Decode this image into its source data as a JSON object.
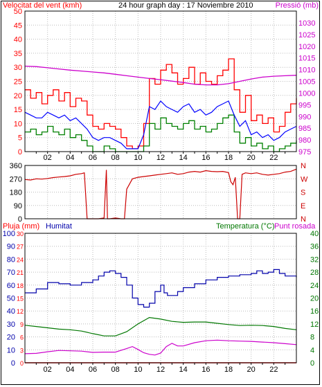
{
  "colors": {
    "wind": "#ff0000",
    "wind_avg": "#0000ff",
    "wind_min": "#008000",
    "pressure": "#cc00cc",
    "direction": "#cc0000",
    "rain": "#ff0000",
    "humidity": "#0000aa",
    "temperature": "#007700",
    "dewpoint": "#cc00cc",
    "grid": "#bbbbbb",
    "frame": "#000000"
  },
  "chart_data": [
    {
      "type": "line",
      "title": "24 hour graph day : 17 Noviembre 2010",
      "left_axis_label": "Velocitat del vent (kmh)",
      "right_axis_label": "Pressió (mb)",
      "ylim_left": [
        0,
        50
      ],
      "ylim_right": [
        975,
        1035
      ],
      "y_ticks_left": [
        "0",
        "5",
        "10",
        "15",
        "20",
        "25",
        "30",
        "35",
        "40",
        "45",
        "50"
      ],
      "y_ticks_right": [
        "975",
        "980",
        "985",
        "990",
        "995",
        "1000",
        "1005",
        "1010",
        "1015",
        "1020",
        "1025",
        "1030"
      ],
      "x_ticks": [
        "02",
        "04",
        "06",
        "08",
        "10",
        "12",
        "14",
        "16",
        "18",
        "20",
        "22"
      ],
      "xlim": [
        0,
        24
      ],
      "grid": true,
      "series": [
        {
          "key": "gust",
          "axis": "left",
          "x": [
            0,
            0.5,
            1,
            1.5,
            2,
            2.5,
            3,
            3.5,
            4,
            4.5,
            5,
            5.5,
            6,
            6.5,
            7,
            7.5,
            8,
            8.5,
            9,
            9.5,
            10,
            10.5,
            11,
            11.5,
            12,
            12.5,
            13,
            13.5,
            14,
            14.5,
            15,
            15.5,
            16,
            16.5,
            17,
            17.5,
            18,
            18.5,
            19,
            19.5,
            20,
            20.5,
            21,
            21.5,
            22,
            22.5,
            23,
            23.5,
            24
          ],
          "values": [
            22,
            19,
            21,
            17,
            20,
            22,
            18,
            21,
            16,
            19,
            18,
            13,
            9,
            8,
            10,
            9,
            8,
            5,
            2,
            1,
            2,
            10,
            26,
            24,
            29,
            31,
            28,
            24,
            26,
            30,
            24,
            28,
            25,
            24,
            27,
            29,
            33,
            22,
            14,
            20,
            11,
            13,
            10,
            12,
            7,
            9,
            14,
            17,
            19
          ]
        },
        {
          "key": "average",
          "axis": "left",
          "x": [
            0,
            0.5,
            1,
            1.5,
            2,
            2.5,
            3,
            3.5,
            4,
            4.5,
            5,
            5.5,
            6,
            6.5,
            7,
            7.5,
            8,
            8.5,
            9,
            9.5,
            10,
            10.5,
            11,
            11.5,
            12,
            12.5,
            13,
            13.5,
            14,
            14.5,
            15,
            15.5,
            16,
            16.5,
            17,
            17.5,
            18,
            18.5,
            19,
            19.5,
            20,
            20.5,
            21,
            21.5,
            22,
            22.5,
            23,
            23.5,
            24
          ],
          "values": [
            14,
            13,
            12,
            12,
            14,
            13,
            12,
            13,
            11,
            12,
            10,
            8,
            5,
            4,
            5,
            5,
            4,
            3,
            1,
            1,
            1,
            6,
            16,
            15,
            18,
            16,
            15,
            14,
            16,
            17,
            14,
            15,
            13,
            14,
            16,
            17,
            18,
            13,
            9,
            11,
            6,
            7,
            5,
            6,
            4,
            5,
            7,
            8,
            9
          ]
        },
        {
          "key": "minimum",
          "axis": "left",
          "x": [
            0,
            0.5,
            1,
            1.5,
            2,
            2.5,
            3,
            3.5,
            4,
            4.5,
            5,
            5.5,
            6,
            6.5,
            7,
            7.5,
            8,
            8.5,
            9,
            9.5,
            10,
            10.5,
            11,
            11.5,
            12,
            12.5,
            13,
            13.5,
            14,
            14.5,
            15,
            15.5,
            16,
            16.5,
            17,
            17.5,
            18,
            18.5,
            19,
            19.5,
            20,
            20.5,
            21,
            21.5,
            22,
            22.5,
            23,
            23.5,
            24
          ],
          "values": [
            7,
            8,
            6,
            7,
            9,
            7,
            6,
            8,
            5,
            6,
            4,
            2,
            0,
            0,
            2,
            1,
            0,
            0,
            0,
            0,
            0,
            2,
            10,
            8,
            12,
            10,
            9,
            8,
            10,
            11,
            8,
            9,
            7,
            8,
            10,
            12,
            13,
            7,
            3,
            5,
            2,
            3,
            1,
            2,
            0,
            1,
            2,
            3,
            4
          ]
        },
        {
          "key": "pressure",
          "axis": "right",
          "x": [
            0,
            1,
            2,
            3,
            4,
            5,
            6,
            7,
            8,
            9,
            10,
            11,
            12,
            13,
            14,
            15,
            16,
            17,
            18,
            19,
            20,
            21,
            22,
            23,
            24
          ],
          "values": [
            1011.5,
            1011.3,
            1010.8,
            1010.3,
            1009.8,
            1009.4,
            1009.0,
            1008.6,
            1008.0,
            1007.4,
            1006.8,
            1006.2,
            1005.7,
            1005.1,
            1004.5,
            1003.8,
            1003.5,
            1003.5,
            1004.0,
            1005.0,
            1006.0,
            1006.8,
            1007.2,
            1007.4,
            1007.6
          ]
        }
      ]
    },
    {
      "type": "line",
      "ylim": [
        0,
        360
      ],
      "y_ticks_left": [
        "0",
        "90",
        "180",
        "270",
        "360"
      ],
      "y_ticks_right": [
        "N",
        "E",
        "S",
        "W",
        "N"
      ],
      "xlim": [
        0,
        24
      ],
      "grid": true,
      "series": [
        {
          "key": "direction",
          "x": [
            0,
            0.5,
            1,
            1.5,
            2,
            2.5,
            3,
            3.5,
            4,
            4.5,
            5,
            5.25,
            5.5,
            6,
            6.5,
            7,
            7.2,
            7.3,
            7.5,
            8,
            8.5,
            8.8,
            9,
            9.5,
            10,
            10.5,
            11,
            11.5,
            12,
            12.5,
            13,
            13.5,
            14,
            14.5,
            15,
            15.5,
            16,
            16.5,
            17,
            17.5,
            18,
            18.2,
            18.4,
            18.6,
            18.8,
            19,
            19.2,
            19.5,
            20,
            20.5,
            21,
            21.5,
            22,
            22.5,
            23,
            23.5,
            24
          ],
          "values": [
            265,
            262,
            270,
            268,
            272,
            278,
            282,
            285,
            290,
            300,
            305,
            310,
            0,
            0,
            0,
            5,
            330,
            0,
            0,
            5,
            0,
            0,
            200,
            270,
            280,
            285,
            290,
            295,
            300,
            305,
            310,
            300,
            305,
            315,
            320,
            315,
            325,
            320,
            318,
            320,
            312,
            250,
            230,
            280,
            0,
            0,
            300,
            310,
            305,
            310,
            300,
            295,
            300,
            305,
            315,
            320,
            335
          ]
        }
      ]
    },
    {
      "type": "line",
      "left_axis_label": "Pluja (mm)",
      "left2_axis_label": "Humitat",
      "right_axis_label": "Temperatura (°C)",
      "right2_axis_label": "Punt rosada",
      "ylim_rain": [
        0,
        30
      ],
      "ylim_humidity": [
        0,
        100
      ],
      "ylim_temp": [
        0,
        40
      ],
      "y_ticks_rain": [
        "0",
        "3",
        "6",
        "9",
        "12",
        "15",
        "18",
        "21",
        "24",
        "27",
        "30"
      ],
      "y_ticks_humidity": [
        "0",
        "10",
        "20",
        "30",
        "40",
        "50",
        "60",
        "70",
        "80",
        "90",
        "100"
      ],
      "y_ticks_temp": [
        "0",
        "4",
        "8",
        "12",
        "16",
        "20",
        "24",
        "28",
        "32",
        "36",
        "40"
      ],
      "x_ticks": [
        "02",
        "04",
        "06",
        "08",
        "10",
        "12",
        "14",
        "16",
        "18",
        "20",
        "22"
      ],
      "xlim": [
        0,
        24
      ],
      "grid": true,
      "series": [
        {
          "key": "rain",
          "axis": "rain",
          "x": [
            0,
            24
          ],
          "values": [
            0,
            0
          ]
        },
        {
          "key": "humidity",
          "axis": "humidity",
          "x": [
            0,
            1,
            2,
            3,
            4,
            5,
            6,
            6.5,
            7,
            7.5,
            8,
            8.5,
            9,
            9.5,
            10,
            10.5,
            11,
            11.5,
            12,
            12.3,
            12.6,
            13,
            13.5,
            14,
            15,
            16,
            17,
            18,
            19,
            20,
            20.5,
            21,
            21.5,
            22,
            22.5,
            23,
            24
          ],
          "values": [
            54,
            57,
            62,
            61,
            60,
            62,
            64,
            67,
            70,
            71,
            69,
            66,
            60,
            50,
            45,
            43,
            46,
            55,
            60,
            54,
            52,
            52,
            55,
            58,
            61,
            64,
            66,
            67,
            68,
            69,
            71,
            69,
            70,
            72,
            69,
            67,
            66
          ]
        },
        {
          "key": "temperature",
          "axis": "temp",
          "x": [
            0,
            1,
            2,
            3,
            4,
            5,
            6,
            7,
            8,
            9,
            10,
            11,
            12,
            13,
            14,
            15,
            16,
            17,
            18,
            19,
            20,
            21,
            22,
            23,
            24
          ],
          "values": [
            11.6,
            11.2,
            10.8,
            10.4,
            10.2,
            9.8,
            9.0,
            8.3,
            8.3,
            9.6,
            12.0,
            14.0,
            13.5,
            12.8,
            12.5,
            12.6,
            12.6,
            12.2,
            11.8,
            11.5,
            11.6,
            11.5,
            11.2,
            10.6,
            10.2
          ]
        },
        {
          "key": "dewpoint",
          "axis": "temp",
          "x": [
            0,
            1,
            2,
            3,
            4,
            5,
            6,
            7,
            8,
            9,
            9.5,
            10,
            10.5,
            11,
            11.5,
            12,
            12.5,
            13,
            13.5,
            14,
            15,
            16,
            17,
            18,
            19,
            20,
            21,
            22,
            23,
            24
          ],
          "values": [
            2.8,
            2.9,
            3.4,
            3.8,
            3.7,
            3.6,
            3.2,
            3.3,
            3.3,
            4.4,
            5.0,
            4.1,
            3.1,
            2.6,
            2.4,
            3.0,
            5.0,
            6.0,
            5.2,
            5.2,
            6.2,
            6.8,
            7.0,
            6.8,
            6.7,
            6.6,
            6.4,
            6.2,
            5.9,
            5.6
          ]
        }
      ]
    }
  ]
}
